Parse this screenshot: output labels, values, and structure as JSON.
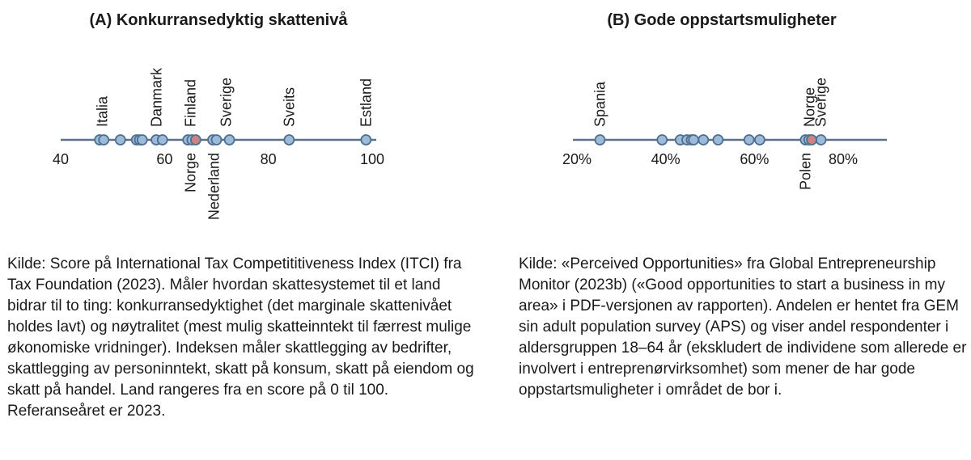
{
  "chart_data": [
    {
      "type": "scatter",
      "title": "(A) Konkurransedyktig skattenivå",
      "xlim": [
        40,
        100
      ],
      "ticks": [
        40,
        60,
        80,
        100
      ],
      "tick_labels": [
        "40",
        "60",
        "80",
        "100"
      ],
      "points": [
        47.5,
        48.3,
        51.5,
        54.6,
        55.2,
        55.7,
        58.4,
        59.6,
        64.5,
        65.3,
        66.0,
        69.3,
        70.0,
        72.5,
        84.0,
        98.8
      ],
      "highlight": {
        "name": "Norge",
        "value": 66.0
      },
      "labels": [
        {
          "text": "Italia",
          "value": 48.0,
          "side": "above"
        },
        {
          "text": "Danmark",
          "value": 58.5,
          "side": "above"
        },
        {
          "text": "Finland",
          "value": 65.0,
          "side": "above"
        },
        {
          "text": "Sverige",
          "value": 71.9,
          "side": "above"
        },
        {
          "text": "Sveits",
          "value": 84.0,
          "side": "above"
        },
        {
          "text": "Estland",
          "value": 98.8,
          "side": "above"
        },
        {
          "text": "Norge",
          "value": 65.0,
          "side": "below"
        },
        {
          "text": "Nederland",
          "value": 69.5,
          "side": "below"
        }
      ],
      "colors": {
        "point": "#9dbbd9",
        "point_edge": "#4d6f91",
        "highlight": "#c98585",
        "axis": "#5b7188"
      },
      "source": "Kilde: Score på International Tax Competititiveness Index (ITCI) fra Tax Foundation (2023). Måler hvordan skattesystemet til et land bidrar til to ting: konkurransedyktighet (det marginale skattenivået holdes lavt) og nøytralitet (mest mulig skatteinntekt til færrest mulige økonomiske vridninger). Indeksen måler skattlegging av bedrifter, skattlegging av personinntekt, skatt på konsum, skatt på eiendom og skatt på handel. Land rangeres fra en score på 0 til 100. Referanseåret er 2023."
    },
    {
      "type": "scatter",
      "title": "(B) Gode oppstartsmuligheter",
      "xlim": [
        20,
        90
      ],
      "ticks": [
        20,
        40,
        60,
        80
      ],
      "tick_labels": [
        "20%",
        "40%",
        "60%",
        "80%"
      ],
      "points": [
        25.2,
        39.2,
        43.3,
        44.8,
        45.8,
        46.3,
        48.5,
        51.8,
        58.8,
        61.2,
        71.5,
        72.3,
        72.9,
        75.0
      ],
      "highlight": {
        "name": "Norge",
        "value": 72.9
      },
      "labels": [
        {
          "text": "Spania",
          "value": 25.2,
          "side": "above"
        },
        {
          "text": "Norge",
          "value": 72.4,
          "side": "above"
        },
        {
          "text": "Sverige",
          "value": 75.0,
          "side": "above"
        },
        {
          "text": "Polen",
          "value": 71.5,
          "side": "below"
        }
      ],
      "colors": {
        "point": "#9dbbd9",
        "point_edge": "#4d6f91",
        "highlight": "#c98585",
        "axis": "#5b7188"
      },
      "source": "Kilde: «Perceived Opportunities» fra Global Entrepreneurship Monitor (2023b) («Good opportunities to start a business in my area» i PDF-versjonen av rapporten). Andelen er hentet fra GEM sin adult population survey (APS) og viser andel respondenter i aldersgruppen 18–64 år (ekskludert de individene som allerede er involvert i entreprenørvirksomhet) som mener de har gode oppstartsmuligheter i området de bor i."
    }
  ]
}
